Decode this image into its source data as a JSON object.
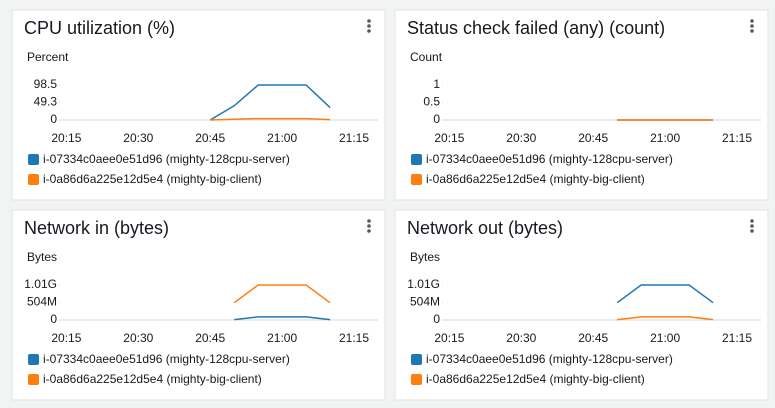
{
  "chart_data": [
    {
      "type": "line",
      "title": "CPU utilization (%)",
      "y_label": "Percent",
      "x": [
        "20:45",
        "20:50",
        "20:55",
        "21:00",
        "21:05",
        "21:10"
      ],
      "xlim": [
        "20:12",
        "21:20"
      ],
      "xticks": [
        "20:15",
        "20:30",
        "20:45",
        "21:00",
        "21:15"
      ],
      "ylim": [
        0,
        98.5
      ],
      "yticks": [
        0,
        49.3,
        98.5
      ],
      "series": [
        {
          "name": "i-07334c0aee0e51d96 (mighty-128cpu-server)",
          "color": "#1f77b4",
          "values": [
            0,
            40,
            98.5,
            98.5,
            98.5,
            35
          ]
        },
        {
          "name": "i-0a86d6a225e12d5e4 (mighty-big-client)",
          "color": "#ff7f0e",
          "values": [
            0,
            2,
            4,
            4,
            4,
            1
          ]
        }
      ]
    },
    {
      "type": "line",
      "title": "Status check failed (any) (count)",
      "y_label": "Count",
      "x": [
        "20:50",
        "20:55",
        "21:00",
        "21:05",
        "21:10"
      ],
      "xlim": [
        "20:12",
        "21:20"
      ],
      "xticks": [
        "20:15",
        "20:30",
        "20:45",
        "21:00",
        "21:15"
      ],
      "ylim": [
        0,
        1
      ],
      "yticks": [
        0,
        0.5,
        1
      ],
      "series": [
        {
          "name": "i-07334c0aee0e51d96 (mighty-128cpu-server)",
          "color": "#1f77b4",
          "values": [
            0,
            0,
            0,
            0,
            0
          ]
        },
        {
          "name": "i-0a86d6a225e12d5e4 (mighty-big-client)",
          "color": "#ff7f0e",
          "values": [
            0,
            0,
            0,
            0,
            0
          ]
        }
      ]
    },
    {
      "type": "line",
      "title": "Network in (bytes)",
      "y_label": "Bytes",
      "x": [
        "20:50",
        "20:55",
        "21:00",
        "21:05",
        "21:10"
      ],
      "xlim": [
        "20:12",
        "21:20"
      ],
      "xticks": [
        "20:15",
        "20:30",
        "20:45",
        "21:00",
        "21:15"
      ],
      "ylim": [
        0,
        1010000000
      ],
      "yticks": [
        0,
        {
          "value": 504000000,
          "label": "504M"
        },
        {
          "value": 1010000000,
          "label": "1.01G"
        }
      ],
      "series": [
        {
          "name": "i-07334c0aee0e51d96 (mighty-128cpu-server)",
          "color": "#1f77b4",
          "values": [
            10000000,
            90000000,
            90000000,
            90000000,
            10000000
          ]
        },
        {
          "name": "i-0a86d6a225e12d5e4 (mighty-big-client)",
          "color": "#ff7f0e",
          "values": [
            500000000,
            1010000000,
            1010000000,
            1010000000,
            500000000
          ]
        }
      ]
    },
    {
      "type": "line",
      "title": "Network out (bytes)",
      "y_label": "Bytes",
      "x": [
        "20:50",
        "20:55",
        "21:00",
        "21:05",
        "21:10"
      ],
      "xlim": [
        "20:12",
        "21:20"
      ],
      "xticks": [
        "20:15",
        "20:30",
        "20:45",
        "21:00",
        "21:15"
      ],
      "ylim": [
        0,
        1010000000
      ],
      "yticks": [
        0,
        {
          "value": 504000000,
          "label": "504M"
        },
        {
          "value": 1010000000,
          "label": "1.01G"
        }
      ],
      "series": [
        {
          "name": "i-07334c0aee0e51d96 (mighty-128cpu-server)",
          "color": "#1f77b4",
          "values": [
            500000000,
            1010000000,
            1010000000,
            1010000000,
            500000000
          ]
        },
        {
          "name": "i-0a86d6a225e12d5e4 (mighty-big-client)",
          "color": "#ff7f0e",
          "values": [
            10000000,
            90000000,
            90000000,
            90000000,
            10000000
          ]
        }
      ]
    }
  ]
}
